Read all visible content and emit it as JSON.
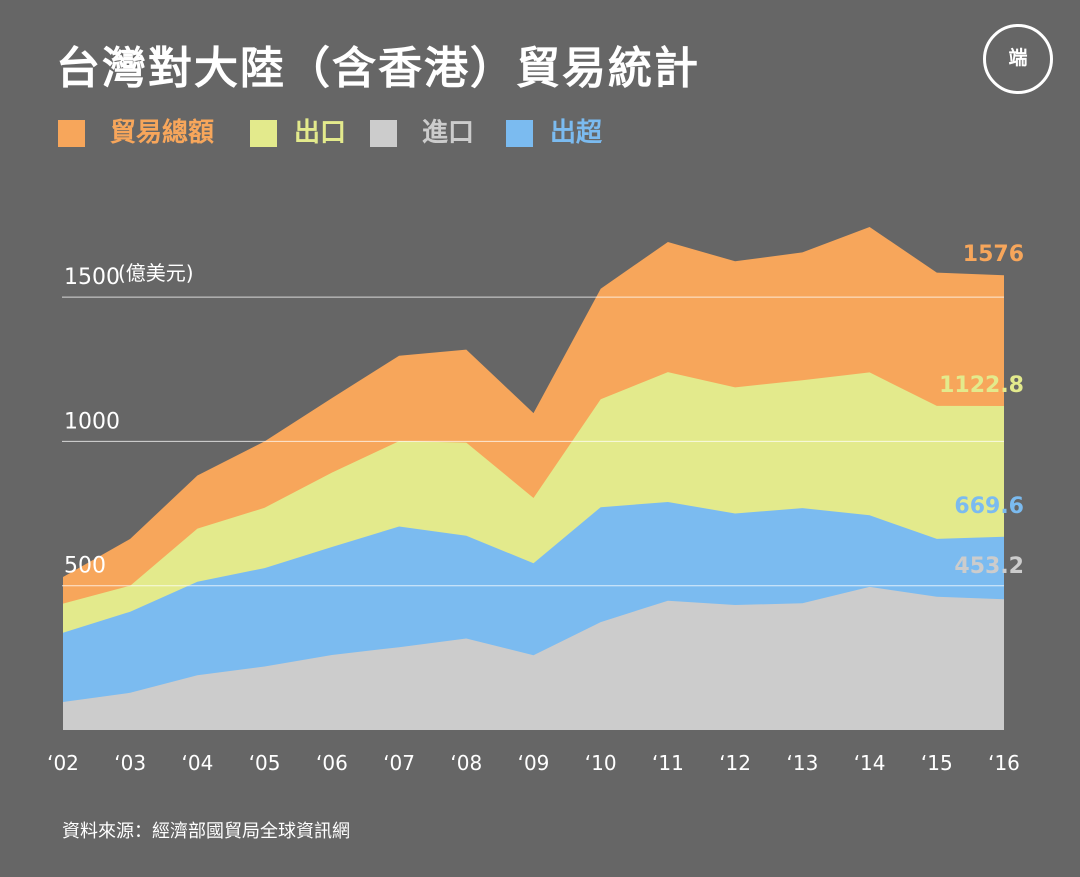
{
  "title": "台灣對大陸（含香港）貿易統計",
  "logo_text": "端",
  "icon": "initium-logo-icon",
  "colors": {
    "background": "#666666",
    "total": "#F7A65B",
    "export": "#E3EA8C",
    "import": "#CCCCCC",
    "surplus": "#7BBBF0",
    "text": "#FFFFFF"
  },
  "legend": [
    {
      "label": "貿易總額",
      "color": "#F7A65B"
    },
    {
      "label": "出口",
      "color": "#E3EA8C"
    },
    {
      "label": "進口",
      "color": "#CCCCCC"
    },
    {
      "label": "出超",
      "color": "#7BBBF0"
    }
  ],
  "source": "資料來源：經濟部國貿局全球資訊網",
  "chart_data": {
    "type": "area",
    "ylabel": "(億美元)",
    "ylim": [
      0,
      1700
    ],
    "yticks": [
      500,
      1000,
      1500
    ],
    "grid": true,
    "legend_position": "top-left",
    "categories": [
      "‘02",
      "‘03",
      "‘04",
      "‘05",
      "‘06",
      "‘07",
      "‘08",
      "‘09",
      "‘10",
      "‘11",
      "‘12",
      "‘13",
      "‘14",
      "‘15",
      "‘16"
    ],
    "series": [
      {
        "name": "貿易總額",
        "values": [
          530,
          662,
          882,
          1000,
          1150,
          1297,
          1318,
          1098,
          1529,
          1691,
          1624,
          1655,
          1743,
          1585,
          1576
        ]
      },
      {
        "name": "出口",
        "values": [
          438,
          500,
          698,
          770,
          892,
          1001,
          996,
          804,
          1146,
          1240,
          1187,
          1212,
          1239,
          1123,
          1122.8
        ]
      },
      {
        "name": "出超",
        "values": [
          337,
          410,
          514,
          561,
          634,
          705,
          673,
          578,
          772,
          790,
          750,
          769,
          744,
          662,
          669.6
        ]
      },
      {
        "name": "進口",
        "values": [
          97,
          129,
          190,
          220,
          260,
          287,
          317,
          259,
          374,
          448,
          433,
          439,
          496,
          462,
          453.2
        ]
      }
    ],
    "end_labels": [
      {
        "series": "貿易總額",
        "text": "1576"
      },
      {
        "series": "出口",
        "text": "1122.8"
      },
      {
        "series": "出超",
        "text": "669.6"
      },
      {
        "series": "進口",
        "text": "453.2"
      }
    ]
  }
}
